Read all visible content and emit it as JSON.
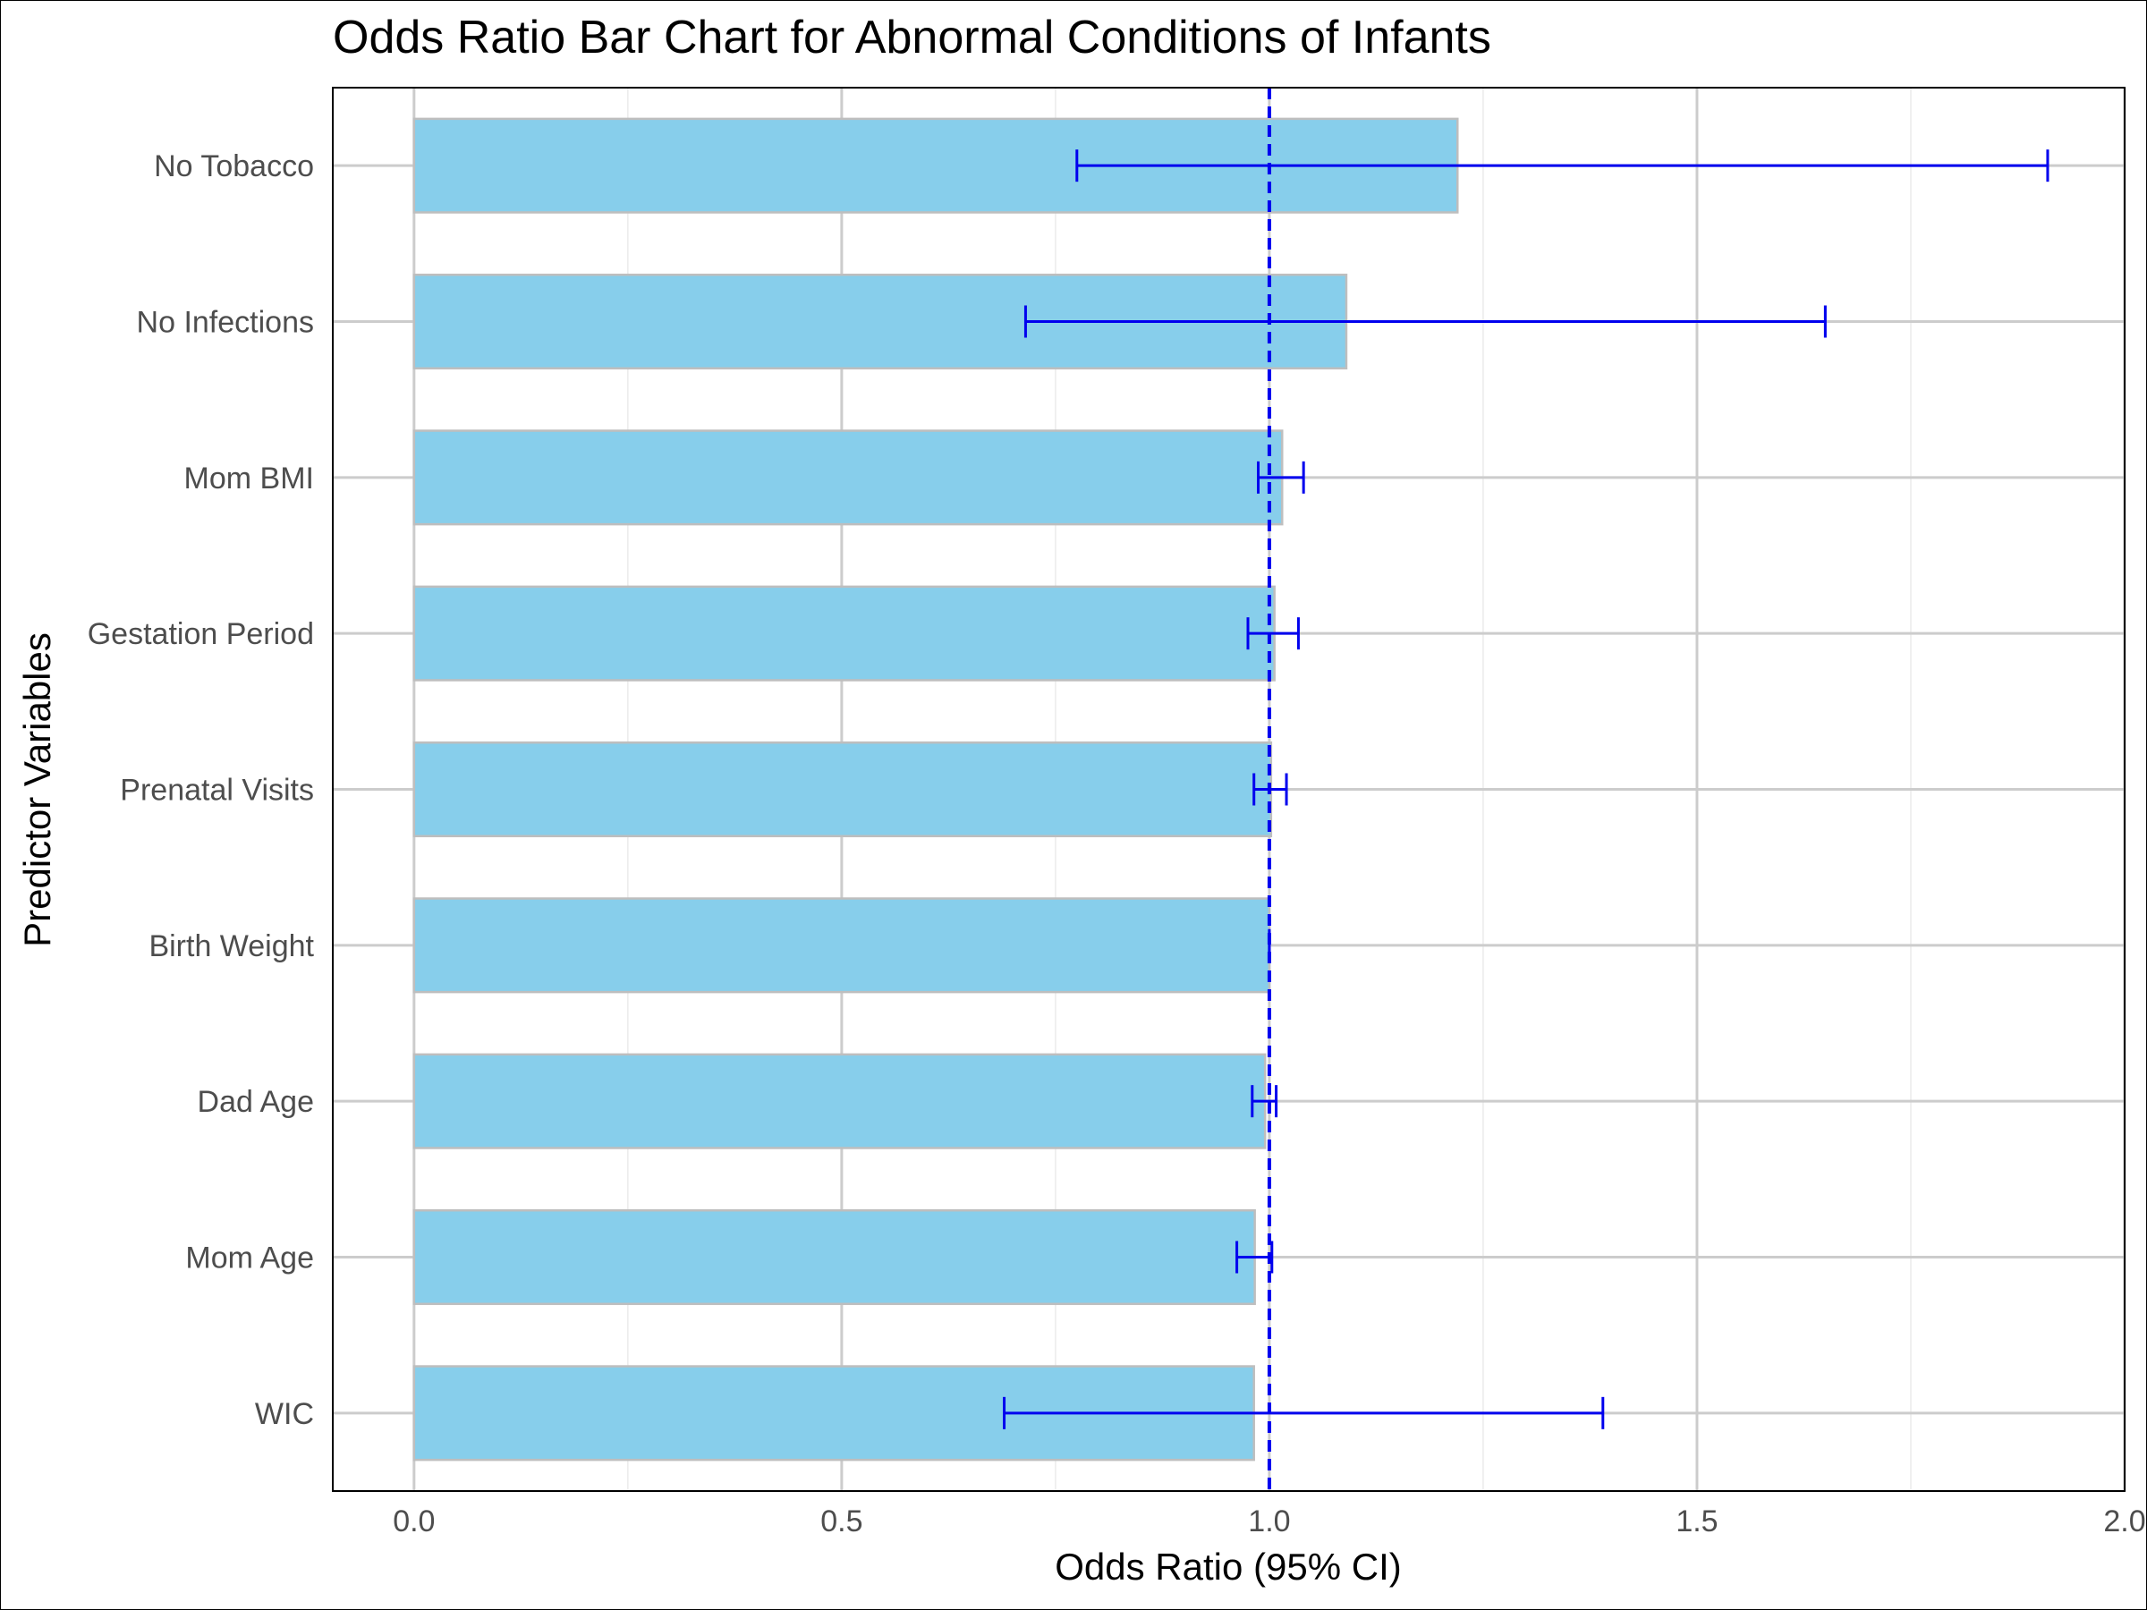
{
  "chart_data": {
    "type": "bar",
    "orientation": "horizontal",
    "title": "Odds Ratio Bar Chart for Abnormal Conditions of Infants",
    "xlabel": "Odds Ratio (95% CI)",
    "ylabel": "Predictor Variables",
    "xlim": [
      -0.095,
      2.0
    ],
    "xticks": [
      0.0,
      0.5,
      1.0,
      1.5,
      2.0
    ],
    "xtick_labels": [
      "0.0",
      "0.5",
      "1.0",
      "1.5",
      "2.0"
    ],
    "grid": true,
    "reference_line": {
      "value": 1.0,
      "style": "dashed",
      "color": "#0000ee"
    },
    "colors": {
      "bar_fill": "#87ceeb",
      "bar_outline": "#bebebe",
      "error_bar": "#0000ee",
      "grid": "#cccccc"
    },
    "categories": [
      "No Tobacco",
      "No Infections",
      "Mom BMI",
      "Gestation Period",
      "Prenatal Visits",
      "Birth Weight",
      "Dad Age",
      "Mom Age",
      "WIC"
    ],
    "values": [
      1.22,
      1.09,
      1.015,
      1.006,
      1.002,
      1.0,
      0.995,
      0.983,
      0.982
    ],
    "ci_lower": [
      0.775,
      0.715,
      0.987,
      0.975,
      0.982,
      1.0,
      0.98,
      0.962,
      0.69
    ],
    "ci_upper": [
      1.91,
      1.65,
      1.04,
      1.034,
      1.02,
      1.0,
      1.008,
      1.003,
      1.39
    ]
  }
}
